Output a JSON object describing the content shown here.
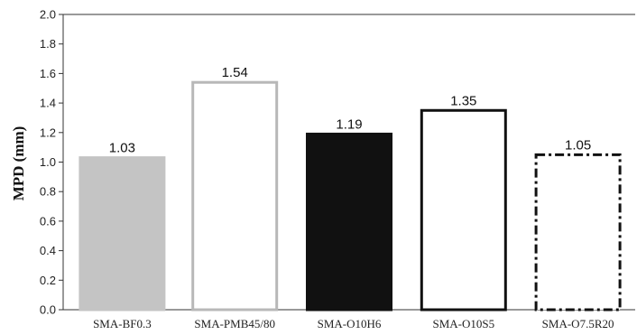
{
  "chart_data": {
    "type": "bar",
    "ylabel": "MPD (mm)",
    "xlabel": "",
    "ylim": [
      0,
      2.0
    ],
    "ytick_step": 0.2,
    "yticks": [
      "0.0",
      "0.2",
      "0.4",
      "0.6",
      "0.8",
      "1.0",
      "1.2",
      "1.4",
      "1.6",
      "1.8",
      "2.0"
    ],
    "grid": false,
    "legend": "none",
    "categories": [
      "SMA-BF0.3",
      "SMA-PMB45/80",
      "SMA-O10H6",
      "SMA-O10S5",
      "SMA-O7.5R20"
    ],
    "values": [
      1.03,
      1.54,
      1.19,
      1.35,
      1.05
    ],
    "data_labels": [
      "1.03",
      "1.54",
      "1.19",
      "1.35",
      "1.05"
    ],
    "bar_styles": [
      {
        "fill": "#c4c4c4",
        "stroke": "#c4c4c4",
        "dash": "solid"
      },
      {
        "fill": "#ffffff",
        "stroke": "#b8b8b8",
        "dash": "solid"
      },
      {
        "fill": "#111111",
        "stroke": "#111111",
        "dash": "solid"
      },
      {
        "fill": "#ffffff",
        "stroke": "#111111",
        "dash": "solid"
      },
      {
        "fill": "#ffffff",
        "stroke": "#111111",
        "dash": "dash-dot"
      }
    ]
  }
}
